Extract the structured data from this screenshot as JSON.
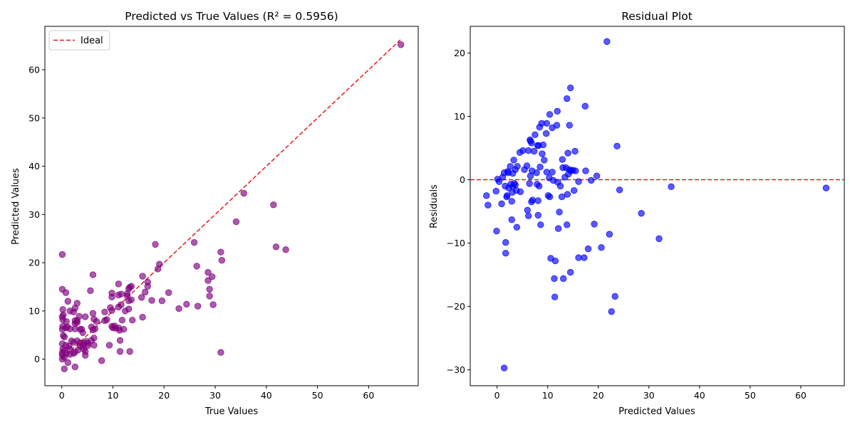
{
  "chart_data": [
    {
      "type": "scatter",
      "title": "Predicted vs True Values (R² = 0.5956)",
      "xlabel": "True Values",
      "ylabel": "Predicted Values",
      "xlim": [
        -3.3,
        69.7
      ],
      "ylim": [
        -5.5,
        69.0
      ],
      "xticks": [
        0,
        10,
        20,
        30,
        40,
        50,
        60
      ],
      "yticks": [
        0,
        10,
        20,
        30,
        40,
        50,
        60
      ],
      "grid": false,
      "legend": {
        "position": "top-left",
        "entries": [
          {
            "label": "Ideal",
            "color": "#e31a1c",
            "style": "dashed"
          }
        ]
      },
      "ideal_line": {
        "x": [
          0,
          66.2
        ],
        "y": [
          0,
          66.2
        ],
        "color": "#e31a1c"
      },
      "point_color": "#800080",
      "points": [
        [
          0.1,
          21.7
        ],
        [
          0.1,
          14.5
        ],
        [
          0.8,
          13.8
        ],
        [
          0.2,
          10.3
        ],
        [
          0.3,
          9.2
        ],
        [
          0.1,
          8.8
        ],
        [
          0.2,
          8.2
        ],
        [
          0.9,
          7.8
        ],
        [
          0.2,
          6.8
        ],
        [
          0.1,
          6.2
        ],
        [
          0.8,
          6.5
        ],
        [
          1.1,
          6.7
        ],
        [
          0.3,
          4.9
        ],
        [
          0.5,
          4.6
        ],
        [
          0.1,
          3.2
        ],
        [
          0.8,
          2.9
        ],
        [
          0.2,
          2.1
        ],
        [
          0.5,
          1.8
        ],
        [
          0.1,
          1.3
        ],
        [
          0.9,
          1.2
        ],
        [
          0.1,
          0.9
        ],
        [
          0.5,
          0.4
        ],
        [
          0.1,
          0.0
        ],
        [
          0.5,
          -2.0
        ],
        [
          1.2,
          -0.7
        ],
        [
          1.2,
          12.0
        ],
        [
          1.6,
          10.0
        ],
        [
          1.6,
          6.3
        ],
        [
          1.4,
          2.7
        ],
        [
          1.6,
          2.1
        ],
        [
          1.6,
          1.0
        ],
        [
          1.9,
          3.8
        ],
        [
          2.3,
          3.5
        ],
        [
          2.3,
          1.2
        ],
        [
          2.6,
          -1.6
        ],
        [
          2.6,
          10.6
        ],
        [
          2.3,
          9.8
        ],
        [
          3.0,
          11.6
        ],
        [
          2.6,
          8.0
        ],
        [
          2.6,
          7.4
        ],
        [
          3.0,
          7.6
        ],
        [
          3.0,
          8.0
        ],
        [
          2.6,
          6.3
        ],
        [
          3.4,
          8.9
        ],
        [
          3.6,
          6.2
        ],
        [
          3.0,
          3.8
        ],
        [
          3.2,
          1.9
        ],
        [
          2.6,
          1.5
        ],
        [
          3.9,
          6.2
        ],
        [
          4.1,
          5.5
        ],
        [
          3.6,
          3.4
        ],
        [
          3.6,
          2.7
        ],
        [
          4.1,
          2.8
        ],
        [
          4.3,
          3.3
        ],
        [
          4.3,
          2.1
        ],
        [
          4.6,
          1.6
        ],
        [
          4.6,
          0.8
        ],
        [
          4.6,
          8.8
        ],
        [
          4.8,
          3.7
        ],
        [
          5.1,
          3.3
        ],
        [
          5.1,
          2.8
        ],
        [
          5.6,
          14.2
        ],
        [
          6.1,
          17.5
        ],
        [
          6.1,
          9.5
        ],
        [
          5.8,
          6.7
        ],
        [
          6.1,
          6.1
        ],
        [
          6.3,
          8.3
        ],
        [
          6.5,
          6.3
        ],
        [
          5.8,
          3.9
        ],
        [
          6.3,
          4.4
        ],
        [
          6.3,
          2.9
        ],
        [
          6.8,
          7.8
        ],
        [
          7.8,
          -0.3
        ],
        [
          8.4,
          9.8
        ],
        [
          8.4,
          8.0
        ],
        [
          8.8,
          8.2
        ],
        [
          9.3,
          2.9
        ],
        [
          9.5,
          10.7
        ],
        [
          9.8,
          13.7
        ],
        [
          9.8,
          12.9
        ],
        [
          9.8,
          10.1
        ],
        [
          9.8,
          6.8
        ],
        [
          10.0,
          6.5
        ],
        [
          10.3,
          6.9
        ],
        [
          10.5,
          6.4
        ],
        [
          11.1,
          15.6
        ],
        [
          11.1,
          13.3
        ],
        [
          11.1,
          10.8
        ],
        [
          11.1,
          6.5
        ],
        [
          11.3,
          6.0
        ],
        [
          11.6,
          13.5
        ],
        [
          11.4,
          3.9
        ],
        [
          11.4,
          1.6
        ],
        [
          11.6,
          11.3
        ],
        [
          11.8,
          8.1
        ],
        [
          12.1,
          6.2
        ],
        [
          12.4,
          10.0
        ],
        [
          12.8,
          13.6
        ],
        [
          12.8,
          13.1
        ],
        [
          13.1,
          14.6
        ],
        [
          13.1,
          12.1
        ],
        [
          13.1,
          10.4
        ],
        [
          13.3,
          14.9
        ],
        [
          13.3,
          1.6
        ],
        [
          13.6,
          15.1
        ],
        [
          13.6,
          12.3
        ],
        [
          13.8,
          8.1
        ],
        [
          15.6,
          12.8
        ],
        [
          15.8,
          17.2
        ],
        [
          15.8,
          8.7
        ],
        [
          16.3,
          13.9
        ],
        [
          16.8,
          16.0
        ],
        [
          16.8,
          15.1
        ],
        [
          17.6,
          12.2
        ],
        [
          18.3,
          23.8
        ],
        [
          18.8,
          18.7
        ],
        [
          19.1,
          19.7
        ],
        [
          19.6,
          12.1
        ],
        [
          20.9,
          13.8
        ],
        [
          22.9,
          10.5
        ],
        [
          24.4,
          11.4
        ],
        [
          25.9,
          24.2
        ],
        [
          26.4,
          19.3
        ],
        [
          26.6,
          11.0
        ],
        [
          28.6,
          18.0
        ],
        [
          28.6,
          16.3
        ],
        [
          28.9,
          14.5
        ],
        [
          28.9,
          13.1
        ],
        [
          29.4,
          17.1
        ],
        [
          29.6,
          11.3
        ],
        [
          31.1,
          22.2
        ],
        [
          31.3,
          20.5
        ],
        [
          31.1,
          1.4
        ],
        [
          34.1,
          28.5
        ],
        [
          35.6,
          34.4
        ],
        [
          41.4,
          32.0
        ],
        [
          41.9,
          23.3
        ],
        [
          43.8,
          22.7
        ],
        [
          66.3,
          65.2
        ]
      ]
    },
    {
      "type": "scatter",
      "title": "Residual Plot",
      "xlabel": "Predicted Values",
      "ylabel": "Residuals",
      "xlim": [
        -5.3,
        68.6
      ],
      "ylim": [
        -32.5,
        24.2
      ],
      "xticks": [
        0,
        10,
        20,
        30,
        40,
        50,
        60
      ],
      "yticks": [
        -30,
        -20,
        -10,
        0,
        10,
        20
      ],
      "grid": false,
      "zero_line": {
        "y": 0,
        "color": "#e31a1c",
        "style": "dashed"
      },
      "point_color": "#0000ff",
      "points": [
        [
          -2.1,
          -2.5
        ],
        [
          -1.8,
          -4.0
        ],
        [
          -0.2,
          -1.8
        ],
        [
          -0.1,
          -8.1
        ],
        [
          0.1,
          0.1
        ],
        [
          0.4,
          -0.3
        ],
        [
          0.9,
          -3.8
        ],
        [
          1.1,
          0.4
        ],
        [
          1.4,
          1.1
        ],
        [
          1.6,
          -1.0
        ],
        [
          1.4,
          -29.7
        ],
        [
          1.7,
          -9.9
        ],
        [
          1.7,
          -11.6
        ],
        [
          1.9,
          -2.7
        ],
        [
          2.0,
          -2.5
        ],
        [
          2.1,
          1.3
        ],
        [
          2.3,
          -1.3
        ],
        [
          2.2,
          1.1
        ],
        [
          2.6,
          2.1
        ],
        [
          2.7,
          -0.7
        ],
        [
          2.9,
          -3.4
        ],
        [
          2.9,
          -6.3
        ],
        [
          3.0,
          -2.0
        ],
        [
          3.1,
          -1.1
        ],
        [
          3.1,
          1.0
        ],
        [
          3.3,
          3.1
        ],
        [
          3.4,
          -0.6
        ],
        [
          3.6,
          1.6
        ],
        [
          3.6,
          -0.8
        ],
        [
          3.8,
          -1.7
        ],
        [
          3.9,
          -7.5
        ],
        [
          4.0,
          2.1
        ],
        [
          4.5,
          4.3
        ],
        [
          4.6,
          -1.9
        ],
        [
          5.1,
          4.6
        ],
        [
          5.4,
          1.6
        ],
        [
          5.9,
          2.2
        ],
        [
          6.0,
          -4.8
        ],
        [
          6.2,
          4.6
        ],
        [
          6.2,
          -5.7
        ],
        [
          6.4,
          -0.6
        ],
        [
          6.5,
          6.3
        ],
        [
          6.6,
          6.1
        ],
        [
          6.6,
          0.6
        ],
        [
          6.8,
          -3.5
        ],
        [
          6.9,
          1.4
        ],
        [
          6.8,
          5.8
        ],
        [
          7.0,
          -3.2
        ],
        [
          7.3,
          4.5
        ],
        [
          7.5,
          7.1
        ],
        [
          7.8,
          1.1
        ],
        [
          7.9,
          -0.7
        ],
        [
          8.0,
          5.4
        ],
        [
          8.1,
          -3.3
        ],
        [
          8.1,
          -5.6
        ],
        [
          8.2,
          5.4
        ],
        [
          8.3,
          -1.0
        ],
        [
          8.4,
          8.3
        ],
        [
          8.5,
          2.0
        ],
        [
          8.6,
          -7.1
        ],
        [
          8.8,
          8.9
        ],
        [
          8.9,
          4.1
        ],
        [
          9.1,
          5.5
        ],
        [
          9.3,
          3.1
        ],
        [
          9.7,
          7.3
        ],
        [
          9.8,
          8.9
        ],
        [
          9.8,
          1.2
        ],
        [
          10.1,
          -2.5
        ],
        [
          10.3,
          0.3
        ],
        [
          10.4,
          -2.7
        ],
        [
          10.4,
          10.3
        ],
        [
          10.6,
          -12.4
        ],
        [
          10.9,
          8.2
        ],
        [
          10.9,
          1.2
        ],
        [
          11.1,
          -0.1
        ],
        [
          11.3,
          -15.6
        ],
        [
          11.4,
          -18.5
        ],
        [
          11.5,
          -12.8
        ],
        [
          11.8,
          8.6
        ],
        [
          11.9,
          10.8
        ],
        [
          12.0,
          -0.4
        ],
        [
          12.1,
          -7.7
        ],
        [
          12.3,
          -5.1
        ],
        [
          12.5,
          -1.0
        ],
        [
          12.8,
          -2.7
        ],
        [
          12.9,
          3.2
        ],
        [
          13.0,
          1.9
        ],
        [
          13.1,
          -15.6
        ],
        [
          13.4,
          0.4
        ],
        [
          13.6,
          1.9
        ],
        [
          13.8,
          12.8
        ],
        [
          13.8,
          -7.1
        ],
        [
          13.9,
          -2.3
        ],
        [
          14.0,
          4.2
        ],
        [
          14.1,
          0.9
        ],
        [
          14.3,
          8.6
        ],
        [
          14.3,
          1.6
        ],
        [
          14.5,
          14.5
        ],
        [
          14.5,
          -14.6
        ],
        [
          14.6,
          1.4
        ],
        [
          15.0,
          1.5
        ],
        [
          15.2,
          -1.7
        ],
        [
          15.4,
          4.5
        ],
        [
          15.5,
          1.4
        ],
        [
          16.1,
          -12.3
        ],
        [
          16.1,
          -0.3
        ],
        [
          17.2,
          -12.3
        ],
        [
          17.4,
          11.6
        ],
        [
          17.5,
          1.4
        ],
        [
          18.0,
          -10.9
        ],
        [
          18.6,
          -0.1
        ],
        [
          19.2,
          -7.0
        ],
        [
          19.7,
          0.6
        ],
        [
          20.6,
          -10.7
        ],
        [
          21.7,
          21.8
        ],
        [
          22.2,
          -8.6
        ],
        [
          22.6,
          -20.8
        ],
        [
          23.3,
          -18.4
        ],
        [
          23.7,
          5.3
        ],
        [
          24.2,
          -1.6
        ],
        [
          28.5,
          -5.3
        ],
        [
          32.0,
          -9.3
        ],
        [
          34.4,
          -1.1
        ],
        [
          65.0,
          -1.3
        ]
      ]
    }
  ]
}
